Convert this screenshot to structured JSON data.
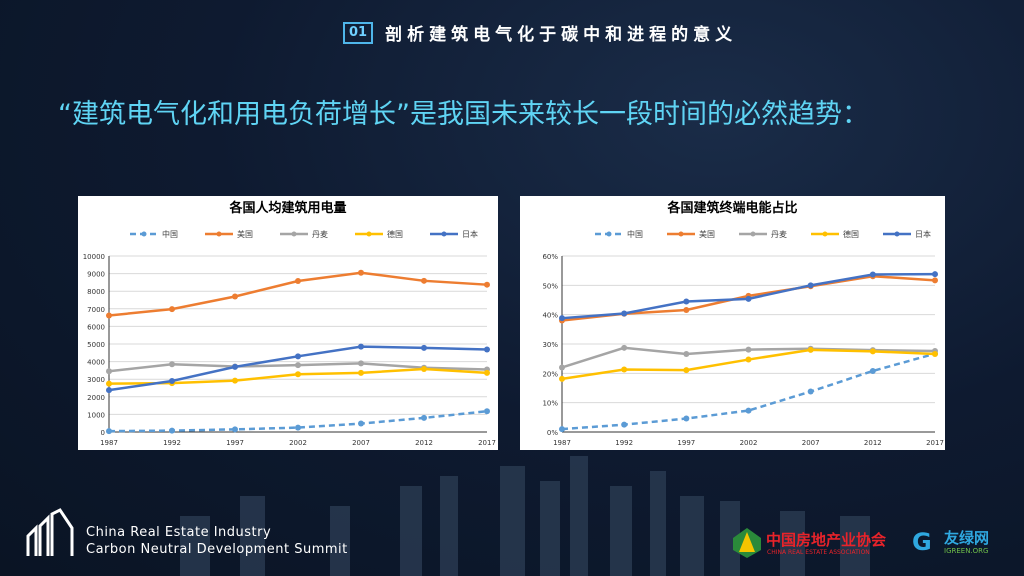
{
  "header": {
    "number": "01",
    "title": "剖析建筑电气化于碳中和进程的意义"
  },
  "subtitle": "“建筑电气化和用电负荷增长”是我国未来较长一段时间的必然趋势：",
  "colors": {
    "中国": "#5b9bd5",
    "美国": "#ed7d31",
    "丹麦": "#a5a5a5",
    "德国": "#ffc000",
    "日本": "#4472c4",
    "accent": "#5fd4f4"
  },
  "chart_data": [
    {
      "type": "line",
      "title": "各国人均建筑用电量",
      "xlabel": "",
      "ylabel": "",
      "categories": [
        "1987",
        "1992",
        "1997",
        "2002",
        "2007",
        "2012",
        "2017"
      ],
      "ylim": [
        0,
        10000
      ],
      "yticks": [
        0,
        1000,
        2000,
        3000,
        4000,
        5000,
        6000,
        7000,
        8000,
        9000,
        10000
      ],
      "legend": "top",
      "grid": true,
      "series": [
        {
          "name": "中国",
          "dashed": true,
          "values": [
            50,
            80,
            150,
            250,
            480,
            800,
            1180
          ]
        },
        {
          "name": "美国",
          "values": [
            6620,
            6980,
            7700,
            8580,
            9050,
            8590,
            8370
          ]
        },
        {
          "name": "丹麦",
          "values": [
            3450,
            3850,
            3720,
            3800,
            3900,
            3650,
            3550
          ]
        },
        {
          "name": "德国",
          "values": [
            2750,
            2780,
            2920,
            3280,
            3360,
            3580,
            3360
          ]
        },
        {
          "name": "日本",
          "values": [
            2380,
            2900,
            3700,
            4300,
            4850,
            4780,
            4690
          ]
        }
      ]
    },
    {
      "type": "line",
      "title": "各国建筑终端电能占比",
      "xlabel": "",
      "ylabel": "",
      "categories": [
        "1987",
        "1992",
        "1997",
        "2002",
        "2007",
        "2012",
        "2017"
      ],
      "ylim": [
        0,
        60
      ],
      "yticks": [
        "0%",
        "10%",
        "20%",
        "30%",
        "40%",
        "50%",
        "60%"
      ],
      "legend": "top",
      "grid": true,
      "series": [
        {
          "name": "中国",
          "dashed": true,
          "values": [
            1,
            2.5,
            4.6,
            7.3,
            13.8,
            20.8,
            26.7
          ]
        },
        {
          "name": "美国",
          "values": [
            38,
            40.3,
            41.6,
            46.4,
            49.7,
            53.1,
            51.7
          ]
        },
        {
          "name": "丹麦",
          "values": [
            22,
            28.7,
            26.6,
            28.1,
            28.4,
            27.9,
            27.6
          ]
        },
        {
          "name": "德国",
          "values": [
            18.1,
            21.3,
            21.1,
            24.7,
            28,
            27.5,
            26.6
          ]
        },
        {
          "name": "日本",
          "values": [
            38.8,
            40.4,
            44.5,
            45.4,
            50,
            53.7,
            53.8
          ]
        }
      ]
    }
  ],
  "footer": {
    "line1": "China Real Estate Industry",
    "line2": "Carbon Neutral Development Summit",
    "logo1": "中国房地产业协会",
    "logo1_en": "CHINA REAL ESTATE ASSOCIATION",
    "logo2": "友绿网",
    "logo2_en": "IGREEN.ORG"
  }
}
